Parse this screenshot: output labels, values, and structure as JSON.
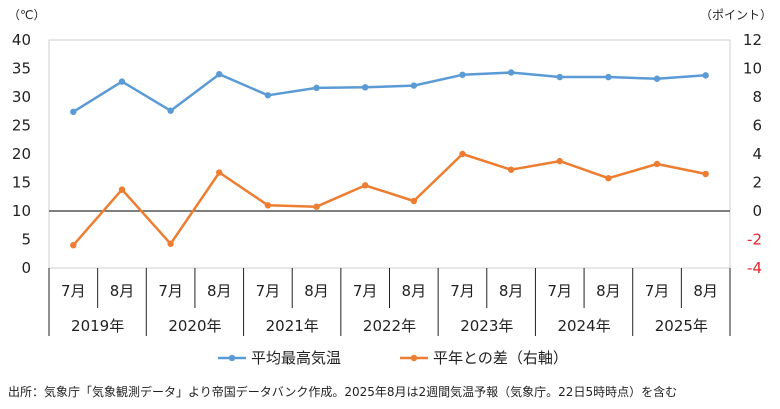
{
  "chart_data": {
    "type": "line",
    "left_unit": "（℃）",
    "right_unit": "（ポイント）",
    "left_axis": {
      "ylim": [
        0,
        40
      ],
      "ticks": [
        0,
        5,
        10,
        15,
        20,
        25,
        30,
        35,
        40
      ]
    },
    "right_axis": {
      "ylim": [
        -4,
        12
      ],
      "ticks": [
        -4,
        -2,
        0,
        2,
        4,
        6,
        8,
        10,
        12
      ],
      "negative_color": "#e0262b"
    },
    "months": [
      "7月",
      "8月",
      "7月",
      "8月",
      "7月",
      "8月",
      "7月",
      "8月",
      "7月",
      "8月",
      "7月",
      "8月",
      "7月",
      "8月"
    ],
    "years": [
      "2019年",
      "2020年",
      "2021年",
      "2022年",
      "2023年",
      "2024年",
      "2025年"
    ],
    "series": [
      {
        "name": "平均最高気温",
        "axis": "left",
        "color": "#5b9bd5",
        "values": [
          27.4,
          32.7,
          27.6,
          34.0,
          30.3,
          31.6,
          31.7,
          32.0,
          33.9,
          34.3,
          33.5,
          33.5,
          33.2,
          33.8
        ]
      },
      {
        "name": "平年との差（右軸）",
        "axis": "right",
        "color": "#ed7d31",
        "values": [
          -2.4,
          1.5,
          -2.3,
          2.7,
          0.4,
          0.3,
          1.8,
          0.7,
          4.0,
          2.9,
          3.5,
          2.3,
          3.3,
          2.6
        ]
      }
    ],
    "grid": false,
    "legend_position": "bottom"
  },
  "source_note": "出所：気象庁「気象観測データ」より帝国データバンク作成。2025年8月は2週間気温予報（気象庁。22日5時時点）を含む"
}
